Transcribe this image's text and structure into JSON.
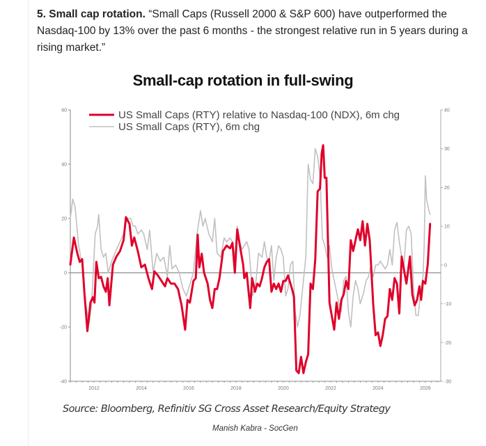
{
  "article": {
    "heading_bold": "5. Small cap rotation.",
    "quote": " “Small Caps (Russell 2000 & S&P 600) have outperformed the Nasdaq-100 by 13% over the past 6 months - the strongest relative run in 5 years during a rising market.”"
  },
  "footer": {
    "source": "Source: Bloomberg, Refinitiv SG Cross Asset Research/Equity Strategy",
    "credit": "Manish Kabra - SocGen"
  },
  "chart_data": {
    "type": "line",
    "title": "Small-cap rotation in full-swing",
    "xlabel": "",
    "ylabel_left": "",
    "ylabel_right": "",
    "x_ticks": [
      "2012",
      "2014",
      "2016",
      "2018",
      "2020",
      "2022",
      "2024",
      "2026"
    ],
    "xlim": [
      2011.0,
      2026.65
    ],
    "y_left": {
      "ticks": [
        "60",
        "40",
        "20",
        "0",
        "-20",
        "-40"
      ],
      "lim": [
        -40,
        60
      ]
    },
    "y_right": {
      "ticks": [
        "40",
        "30",
        "20",
        "10",
        "0",
        "-10",
        "-20",
        "-30"
      ],
      "lim": [
        -30,
        40
      ]
    },
    "grid": false,
    "legend_position": "top-left",
    "series": [
      {
        "name": "US Small Caps (RTY) relative to Nasdaq-100 (NDX), 6m chg",
        "axis": "left",
        "color": "#e0002a",
        "points": [
          [
            2011.0,
            3
          ],
          [
            2011.15,
            13
          ],
          [
            2011.3,
            7
          ],
          [
            2011.4,
            4
          ],
          [
            2011.5,
            5
          ],
          [
            2011.6,
            -8
          ],
          [
            2011.72,
            -21.5
          ],
          [
            2011.85,
            -11
          ],
          [
            2011.95,
            -9
          ],
          [
            2012.02,
            -11
          ],
          [
            2012.1,
            4
          ],
          [
            2012.2,
            -2
          ],
          [
            2012.3,
            -1.5
          ],
          [
            2012.4,
            -5
          ],
          [
            2012.5,
            -7
          ],
          [
            2012.58,
            -2
          ],
          [
            2012.65,
            -12
          ],
          [
            2012.8,
            3
          ],
          [
            2012.95,
            6
          ],
          [
            2013.1,
            8
          ],
          [
            2013.25,
            12
          ],
          [
            2013.35,
            20.5
          ],
          [
            2013.5,
            18
          ],
          [
            2013.6,
            10
          ],
          [
            2013.7,
            13
          ],
          [
            2013.85,
            8
          ],
          [
            2014.0,
            2
          ],
          [
            2014.15,
            3
          ],
          [
            2014.3,
            -2
          ],
          [
            2014.45,
            -6
          ],
          [
            2014.55,
            0.5
          ],
          [
            2014.7,
            -1
          ],
          [
            2014.85,
            -3
          ],
          [
            2015.0,
            -5
          ],
          [
            2015.1,
            -2
          ],
          [
            2015.25,
            -4
          ],
          [
            2015.4,
            -4
          ],
          [
            2015.55,
            -6
          ],
          [
            2015.7,
            -12
          ],
          [
            2015.85,
            -21
          ],
          [
            2015.95,
            -10
          ],
          [
            2016.05,
            -11
          ],
          [
            2016.2,
            -3
          ],
          [
            2016.3,
            -2
          ],
          [
            2016.38,
            14
          ],
          [
            2016.45,
            2
          ],
          [
            2016.55,
            7
          ],
          [
            2016.65,
            0
          ],
          [
            2016.8,
            -4
          ],
          [
            2016.9,
            -10
          ],
          [
            2017.0,
            -13
          ],
          [
            2017.1,
            -6
          ],
          [
            2017.2,
            -6
          ],
          [
            2017.3,
            -2
          ],
          [
            2017.45,
            8
          ],
          [
            2017.6,
            10
          ],
          [
            2017.75,
            9
          ],
          [
            2017.85,
            11
          ],
          [
            2017.95,
            0
          ],
          [
            2018.05,
            16
          ],
          [
            2018.2,
            8
          ],
          [
            2018.3,
            3
          ],
          [
            2018.35,
            -2
          ],
          [
            2018.45,
            0
          ],
          [
            2018.6,
            -13
          ],
          [
            2018.68,
            -2
          ],
          [
            2018.8,
            -7
          ],
          [
            2018.9,
            -4
          ],
          [
            2019.0,
            -5
          ],
          [
            2019.1,
            -2
          ],
          [
            2019.2,
            2
          ],
          [
            2019.3,
            4
          ],
          [
            2019.4,
            5
          ],
          [
            2019.5,
            -7
          ],
          [
            2019.6,
            -4
          ],
          [
            2019.7,
            -6
          ],
          [
            2019.8,
            -4
          ],
          [
            2019.9,
            -7
          ],
          [
            2020.0,
            -3
          ],
          [
            2020.1,
            -3
          ],
          [
            2020.2,
            -1
          ],
          [
            2020.3,
            -4
          ],
          [
            2020.4,
            -7
          ],
          [
            2020.45,
            -9
          ],
          [
            2020.55,
            -36
          ],
          [
            2020.65,
            -37
          ],
          [
            2020.75,
            -31
          ],
          [
            2020.85,
            -37
          ],
          [
            2020.95,
            -33
          ],
          [
            2021.05,
            -30
          ],
          [
            2021.15,
            -4
          ],
          [
            2021.25,
            -6
          ],
          [
            2021.35,
            5
          ],
          [
            2021.45,
            30
          ],
          [
            2021.55,
            31
          ],
          [
            2021.62,
            44
          ],
          [
            2021.68,
            47
          ],
          [
            2021.75,
            35
          ],
          [
            2021.82,
            35
          ],
          [
            2021.95,
            -11
          ],
          [
            2022.05,
            -16
          ],
          [
            2022.15,
            -21
          ],
          [
            2022.25,
            -11
          ],
          [
            2022.35,
            -17
          ],
          [
            2022.45,
            -10
          ],
          [
            2022.55,
            -8
          ],
          [
            2022.65,
            -3
          ],
          [
            2022.75,
            -6
          ],
          [
            2022.85,
            12
          ],
          [
            2022.95,
            8
          ],
          [
            2023.05,
            12
          ],
          [
            2023.15,
            16
          ],
          [
            2023.25,
            12
          ],
          [
            2023.35,
            19
          ],
          [
            2023.45,
            10
          ],
          [
            2023.55,
            18
          ],
          [
            2023.65,
            12
          ],
          [
            2023.8,
            -12
          ],
          [
            2023.9,
            -23
          ],
          [
            2024.0,
            -22
          ],
          [
            2024.1,
            -27
          ],
          [
            2024.2,
            -23
          ],
          [
            2024.3,
            -17
          ],
          [
            2024.4,
            -16
          ],
          [
            2024.5,
            -6
          ],
          [
            2024.6,
            -10
          ],
          [
            2024.7,
            -2
          ],
          [
            2024.8,
            -4
          ],
          [
            2024.9,
            -15
          ],
          [
            2025.0,
            6
          ],
          [
            2025.1,
            1
          ],
          [
            2025.2,
            -4
          ],
          [
            2025.35,
            6
          ],
          [
            2025.45,
            -8
          ],
          [
            2025.55,
            -12
          ],
          [
            2025.65,
            -10
          ],
          [
            2025.75,
            -5
          ],
          [
            2025.82,
            -10
          ],
          [
            2025.9,
            -3
          ],
          [
            2026.0,
            -4
          ],
          [
            2026.1,
            3
          ],
          [
            2026.2,
            18
          ]
        ]
      },
      {
        "name": "US Small Caps (RTY), 6m chg",
        "axis": "right",
        "color": "#c0c0c0",
        "points": [
          [
            2011.0,
            12
          ],
          [
            2011.1,
            17
          ],
          [
            2011.2,
            15
          ],
          [
            2011.35,
            5
          ],
          [
            2011.5,
            0
          ],
          [
            2011.65,
            -10
          ],
          [
            2011.8,
            -15
          ],
          [
            2011.9,
            -10
          ],
          [
            2012.05,
            8
          ],
          [
            2012.15,
            10
          ],
          [
            2012.2,
            13
          ],
          [
            2012.3,
            4
          ],
          [
            2012.4,
            2
          ],
          [
            2012.5,
            3
          ],
          [
            2012.6,
            -2
          ],
          [
            2012.75,
            1
          ],
          [
            2012.95,
            4
          ],
          [
            2013.1,
            6
          ],
          [
            2013.25,
            8
          ],
          [
            2013.4,
            12
          ],
          [
            2013.55,
            12
          ],
          [
            2013.65,
            10
          ],
          [
            2013.75,
            10
          ],
          [
            2013.85,
            8
          ],
          [
            2014.0,
            9
          ],
          [
            2014.1,
            8
          ],
          [
            2014.25,
            4
          ],
          [
            2014.35,
            9
          ],
          [
            2014.5,
            -2
          ],
          [
            2014.65,
            3
          ],
          [
            2014.8,
            1
          ],
          [
            2014.95,
            2
          ],
          [
            2015.1,
            -3
          ],
          [
            2015.2,
            5
          ],
          [
            2015.3,
            -1
          ],
          [
            2015.45,
            0
          ],
          [
            2015.6,
            -2
          ],
          [
            2015.75,
            -6
          ],
          [
            2015.9,
            -8
          ],
          [
            2016.05,
            -5
          ],
          [
            2016.2,
            -2
          ],
          [
            2016.35,
            8
          ],
          [
            2016.5,
            14
          ],
          [
            2016.6,
            10
          ],
          [
            2016.7,
            12
          ],
          [
            2016.85,
            8
          ],
          [
            2017.0,
            6
          ],
          [
            2017.1,
            12
          ],
          [
            2017.2,
            3
          ],
          [
            2017.35,
            2
          ],
          [
            2017.5,
            7
          ],
          [
            2017.6,
            6
          ],
          [
            2017.75,
            7
          ],
          [
            2017.85,
            6
          ],
          [
            2017.95,
            2
          ],
          [
            2018.05,
            10
          ],
          [
            2018.15,
            6
          ],
          [
            2018.25,
            4
          ],
          [
            2018.35,
            5
          ],
          [
            2018.45,
            6
          ],
          [
            2018.55,
            4
          ],
          [
            2018.7,
            -8
          ],
          [
            2018.85,
            -4
          ],
          [
            2018.95,
            3
          ],
          [
            2019.1,
            2
          ],
          [
            2019.2,
            6
          ],
          [
            2019.3,
            2
          ],
          [
            2019.4,
            1
          ],
          [
            2019.5,
            5
          ],
          [
            2019.6,
            -4
          ],
          [
            2019.7,
            2
          ],
          [
            2019.8,
            5
          ],
          [
            2019.9,
            4
          ],
          [
            2020.0,
            2
          ],
          [
            2020.1,
            -8
          ],
          [
            2020.2,
            -6
          ],
          [
            2020.3,
            0
          ],
          [
            2020.4,
            1
          ],
          [
            2020.5,
            -12
          ],
          [
            2020.6,
            -16
          ],
          [
            2020.7,
            -13
          ],
          [
            2020.85,
            -4
          ],
          [
            2020.95,
            2
          ],
          [
            2021.05,
            26
          ],
          [
            2021.15,
            22
          ],
          [
            2021.25,
            21
          ],
          [
            2021.35,
            30
          ],
          [
            2021.45,
            28
          ],
          [
            2021.55,
            23
          ],
          [
            2021.65,
            7
          ],
          [
            2021.75,
            5
          ],
          [
            2021.85,
            2
          ],
          [
            2021.95,
            5
          ],
          [
            2022.05,
            -1
          ],
          [
            2022.15,
            -4
          ],
          [
            2022.25,
            -7
          ],
          [
            2022.35,
            -10
          ],
          [
            2022.45,
            -12
          ],
          [
            2022.55,
            -4
          ],
          [
            2022.65,
            -3
          ],
          [
            2022.75,
            -12
          ],
          [
            2022.85,
            -16
          ],
          [
            2022.95,
            -8
          ],
          [
            2023.05,
            -4
          ],
          [
            2023.15,
            -6
          ],
          [
            2023.25,
            -10
          ],
          [
            2023.4,
            -7
          ],
          [
            2023.5,
            -4
          ],
          [
            2023.6,
            -3
          ],
          [
            2023.7,
            0
          ],
          [
            2023.8,
            -3
          ],
          [
            2023.9,
            0
          ],
          [
            2024.0,
            0
          ],
          [
            2024.1,
            1
          ],
          [
            2024.2,
            0
          ],
          [
            2024.3,
            -1
          ],
          [
            2024.4,
            0
          ],
          [
            2024.5,
            4
          ],
          [
            2024.6,
            0
          ],
          [
            2024.7,
            9
          ],
          [
            2024.8,
            11
          ],
          [
            2024.9,
            6
          ],
          [
            2025.0,
            2
          ],
          [
            2025.1,
            0
          ],
          [
            2025.2,
            9
          ],
          [
            2025.3,
            10
          ],
          [
            2025.4,
            8
          ],
          [
            2025.5,
            -6
          ],
          [
            2025.6,
            -13
          ],
          [
            2025.7,
            -13
          ],
          [
            2025.8,
            -7
          ],
          [
            2025.9,
            -3
          ],
          [
            2025.95,
            5
          ],
          [
            2026.0,
            23
          ],
          [
            2026.05,
            17
          ],
          [
            2026.15,
            14
          ],
          [
            2026.2,
            13
          ]
        ]
      }
    ]
  }
}
